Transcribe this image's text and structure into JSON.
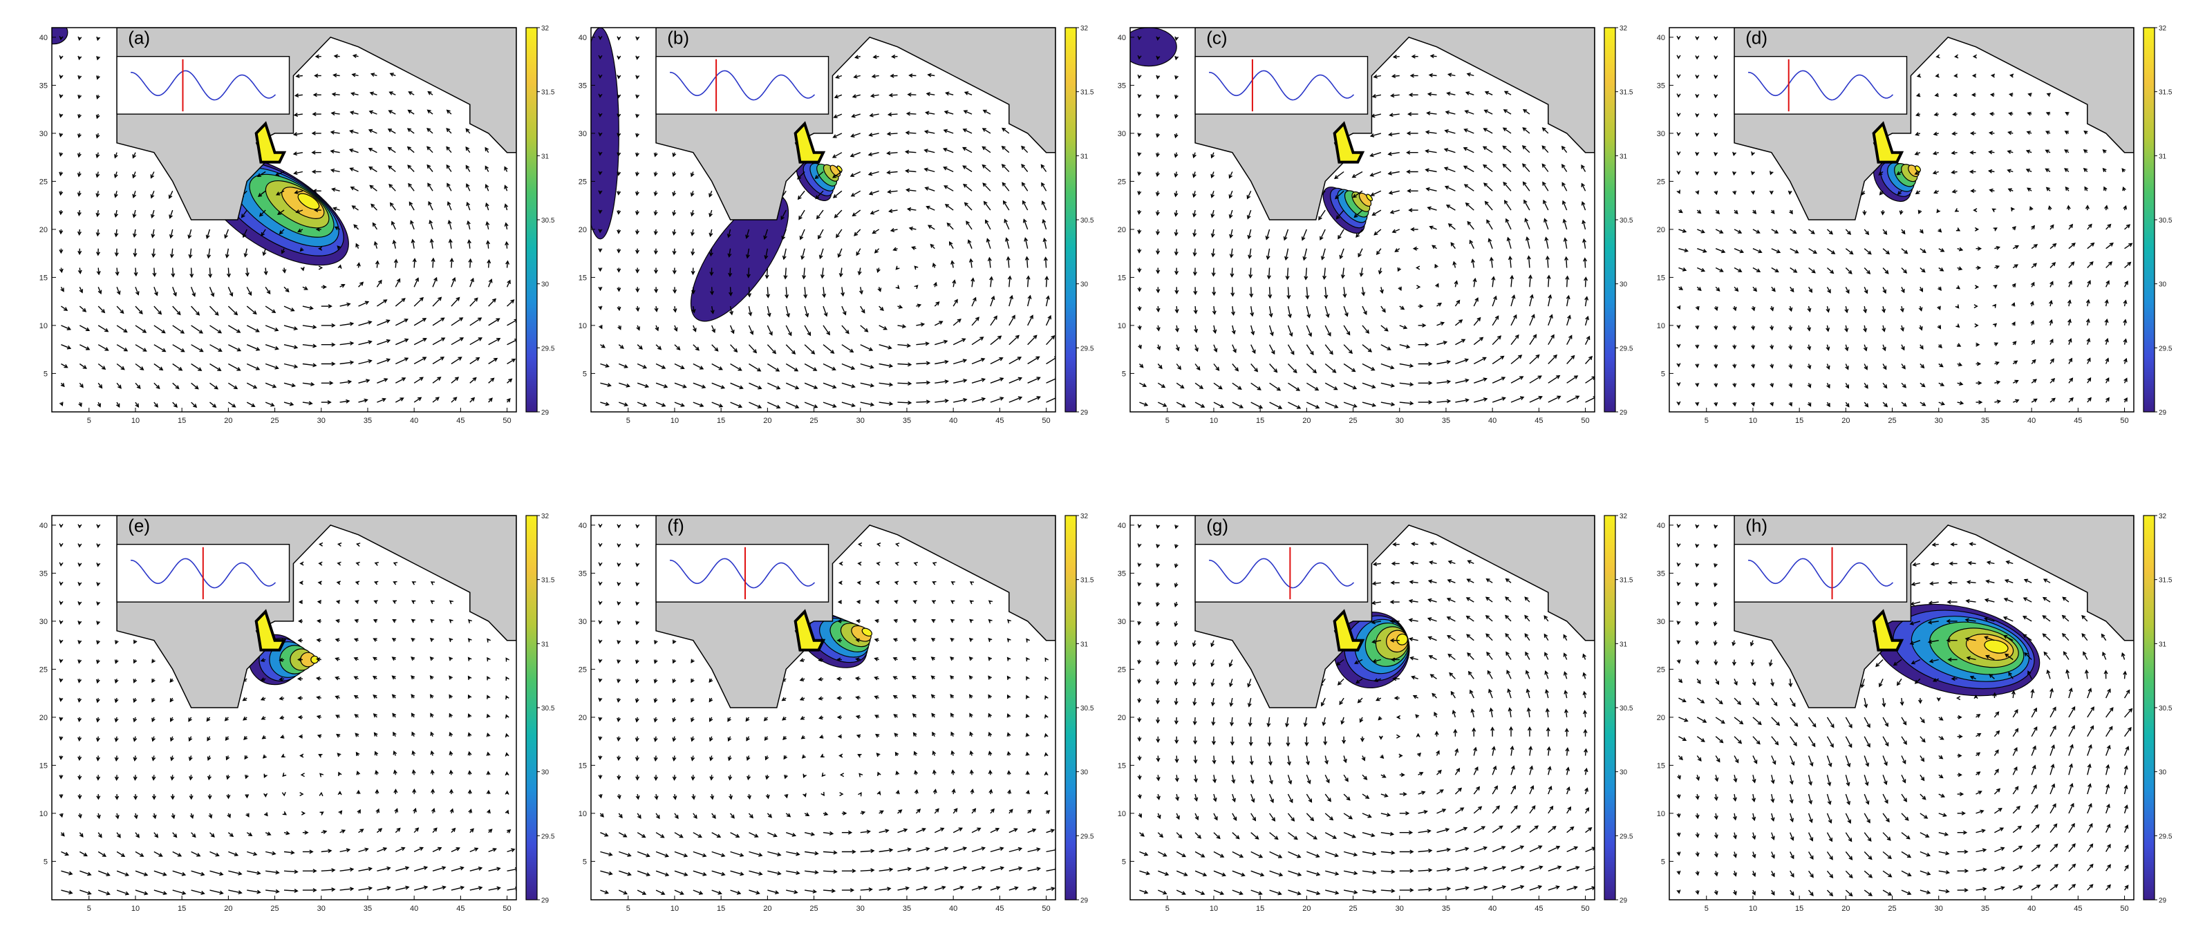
{
  "chart_data": {
    "type": "quiver-contour",
    "title": "",
    "xlabel": "",
    "ylabel": "",
    "xlim": [
      1,
      51
    ],
    "ylim": [
      1,
      41
    ],
    "x_ticks": [
      "5",
      "10",
      "15",
      "20",
      "25",
      "30",
      "35",
      "40",
      "45",
      "50"
    ],
    "y_ticks": [
      "5",
      "10",
      "15",
      "20",
      "25",
      "30",
      "35",
      "40"
    ],
    "colorbar": {
      "range": [
        29,
        32
      ],
      "ticks": [
        "29",
        "29.5",
        "30",
        "30.5",
        "31",
        "31.5",
        "32"
      ],
      "colormap": [
        "#3b1f8c",
        "#3d4ed8",
        "#1f8fd8",
        "#14b5b0",
        "#4cc46a",
        "#b5c93a",
        "#f2c53c",
        "#f6f01e"
      ]
    },
    "land_color": "#c8c8c8",
    "contour_levels": [
      29,
      29.5,
      30,
      30.5,
      31,
      31.5,
      32
    ],
    "panels": [
      {
        "label": "(a)",
        "phase": 0.36,
        "eddy": {
          "x": 30,
          "y": 16,
          "strength": 1.2,
          "sense": 1
        },
        "plume": {
          "x": 25,
          "y": 22,
          "rx": 9,
          "ry": 4,
          "angle": -32,
          "max": 32
        },
        "patches": [
          {
            "x": 1.2,
            "y": 40.5,
            "rx": 1.5,
            "ry": 1.2
          }
        ],
        "jet": {
          "y": 9,
          "strength": 1.0
        }
      },
      {
        "label": "(b)",
        "phase": 0.32,
        "eddy": {
          "x": 35,
          "y": 15,
          "strength": 1.4,
          "sense": 1
        },
        "plume": {
          "x": 25,
          "y": 25,
          "rx": 2.5,
          "ry": 1.2,
          "angle": -50,
          "max": 32
        },
        "patches": [
          {
            "x": 2,
            "y": 30,
            "rx": 2,
            "ry": 11
          },
          {
            "x": 17,
            "y": 17,
            "rx": 8,
            "ry": 3,
            "angle": 55
          }
        ],
        "jet": {
          "y": 4,
          "strength": 1.1
        }
      },
      {
        "label": "(c)",
        "phase": 0.3,
        "eddy": {
          "x": 32,
          "y": 15,
          "strength": 1.5,
          "sense": 1
        },
        "plume": {
          "x": 24,
          "y": 22,
          "rx": 3,
          "ry": 1.4,
          "angle": -50,
          "max": 31.8
        },
        "patches": [
          {
            "x": 3,
            "y": 39,
            "rx": 3,
            "ry": 2
          }
        ],
        "jet": {
          "y": 2,
          "strength": 0.8
        }
      },
      {
        "label": "(d)",
        "phase": 0.28,
        "eddy": {
          "x": 34,
          "y": 12,
          "strength": 0.8,
          "sense": 1
        },
        "plume": {
          "x": 25,
          "y": 25,
          "rx": 2.5,
          "ry": 1.5,
          "angle": -50,
          "max": 32
        },
        "patches": [],
        "jet": {
          "y": 18,
          "strength": 1.0
        }
      },
      {
        "label": "(e)",
        "phase": 0.5,
        "eddy": {
          "x": 28,
          "y": 12,
          "strength": 0.6,
          "sense": 1
        },
        "plume": {
          "x": 25,
          "y": 26,
          "rx": 2.8,
          "ry": 2.6,
          "angle": 0,
          "max": 32
        },
        "patches": [],
        "jet": {
          "y": 3,
          "strength": 1.2
        }
      },
      {
        "label": "(f)",
        "phase": 0.52,
        "eddy": {
          "x": 28,
          "y": 12,
          "strength": 0.6,
          "sense": 1
        },
        "plume": {
          "x": 27,
          "y": 28,
          "rx": 4,
          "ry": 2.4,
          "angle": -30,
          "max": 32
        },
        "patches": [],
        "jet": {
          "y": 5,
          "strength": 1.3
        }
      },
      {
        "label": "(g)",
        "phase": 0.56,
        "eddy": {
          "x": 30,
          "y": 18,
          "strength": 1.2,
          "sense": 1
        },
        "plume": {
          "x": 27,
          "y": 27,
          "rx": 4,
          "ry": 4,
          "angle": -40,
          "max": 32
        },
        "patches": [],
        "jet": {
          "y": 4,
          "strength": 1.0
        }
      },
      {
        "label": "(h)",
        "phase": 0.58,
        "eddy": {
          "x": 32,
          "y": 16,
          "strength": 1.4,
          "sense": 1
        },
        "plume": {
          "x": 32,
          "y": 27,
          "rx": 9,
          "ry": 4.5,
          "angle": -12,
          "max": 32
        },
        "patches": [],
        "jet": {
          "y": 20,
          "strength": 1.0
        }
      }
    ]
  }
}
